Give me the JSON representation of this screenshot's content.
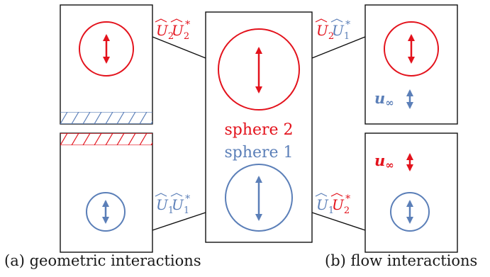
{
  "colors": {
    "red": "#e3121c",
    "blue": "#5b7fb8",
    "black": "#111111"
  },
  "center": {
    "label_top": "sphere 2",
    "label_bottom": "sphere 1"
  },
  "links": {
    "top_left": {
      "a": "U",
      "a_sub": "2",
      "b": "U",
      "b_sub": "2",
      "b_sup": "*"
    },
    "top_right": {
      "a": "U",
      "a_sub": "2",
      "b": "U",
      "b_sub": "1",
      "b_sup": "*"
    },
    "bot_left": {
      "a": "U",
      "a_sub": "1",
      "b": "U",
      "b_sub": "1",
      "b_sup": "*"
    },
    "bot_right": {
      "a": "U",
      "a_sub": "1",
      "b": "U",
      "b_sub": "2",
      "b_sup": "*"
    }
  },
  "flow": {
    "top_label": "u",
    "top_sub": "∞",
    "bottom_label": "u",
    "bottom_sub": "∞"
  },
  "captions": {
    "left": "(a) geometric interactions",
    "right": "(b) flow interactions"
  }
}
